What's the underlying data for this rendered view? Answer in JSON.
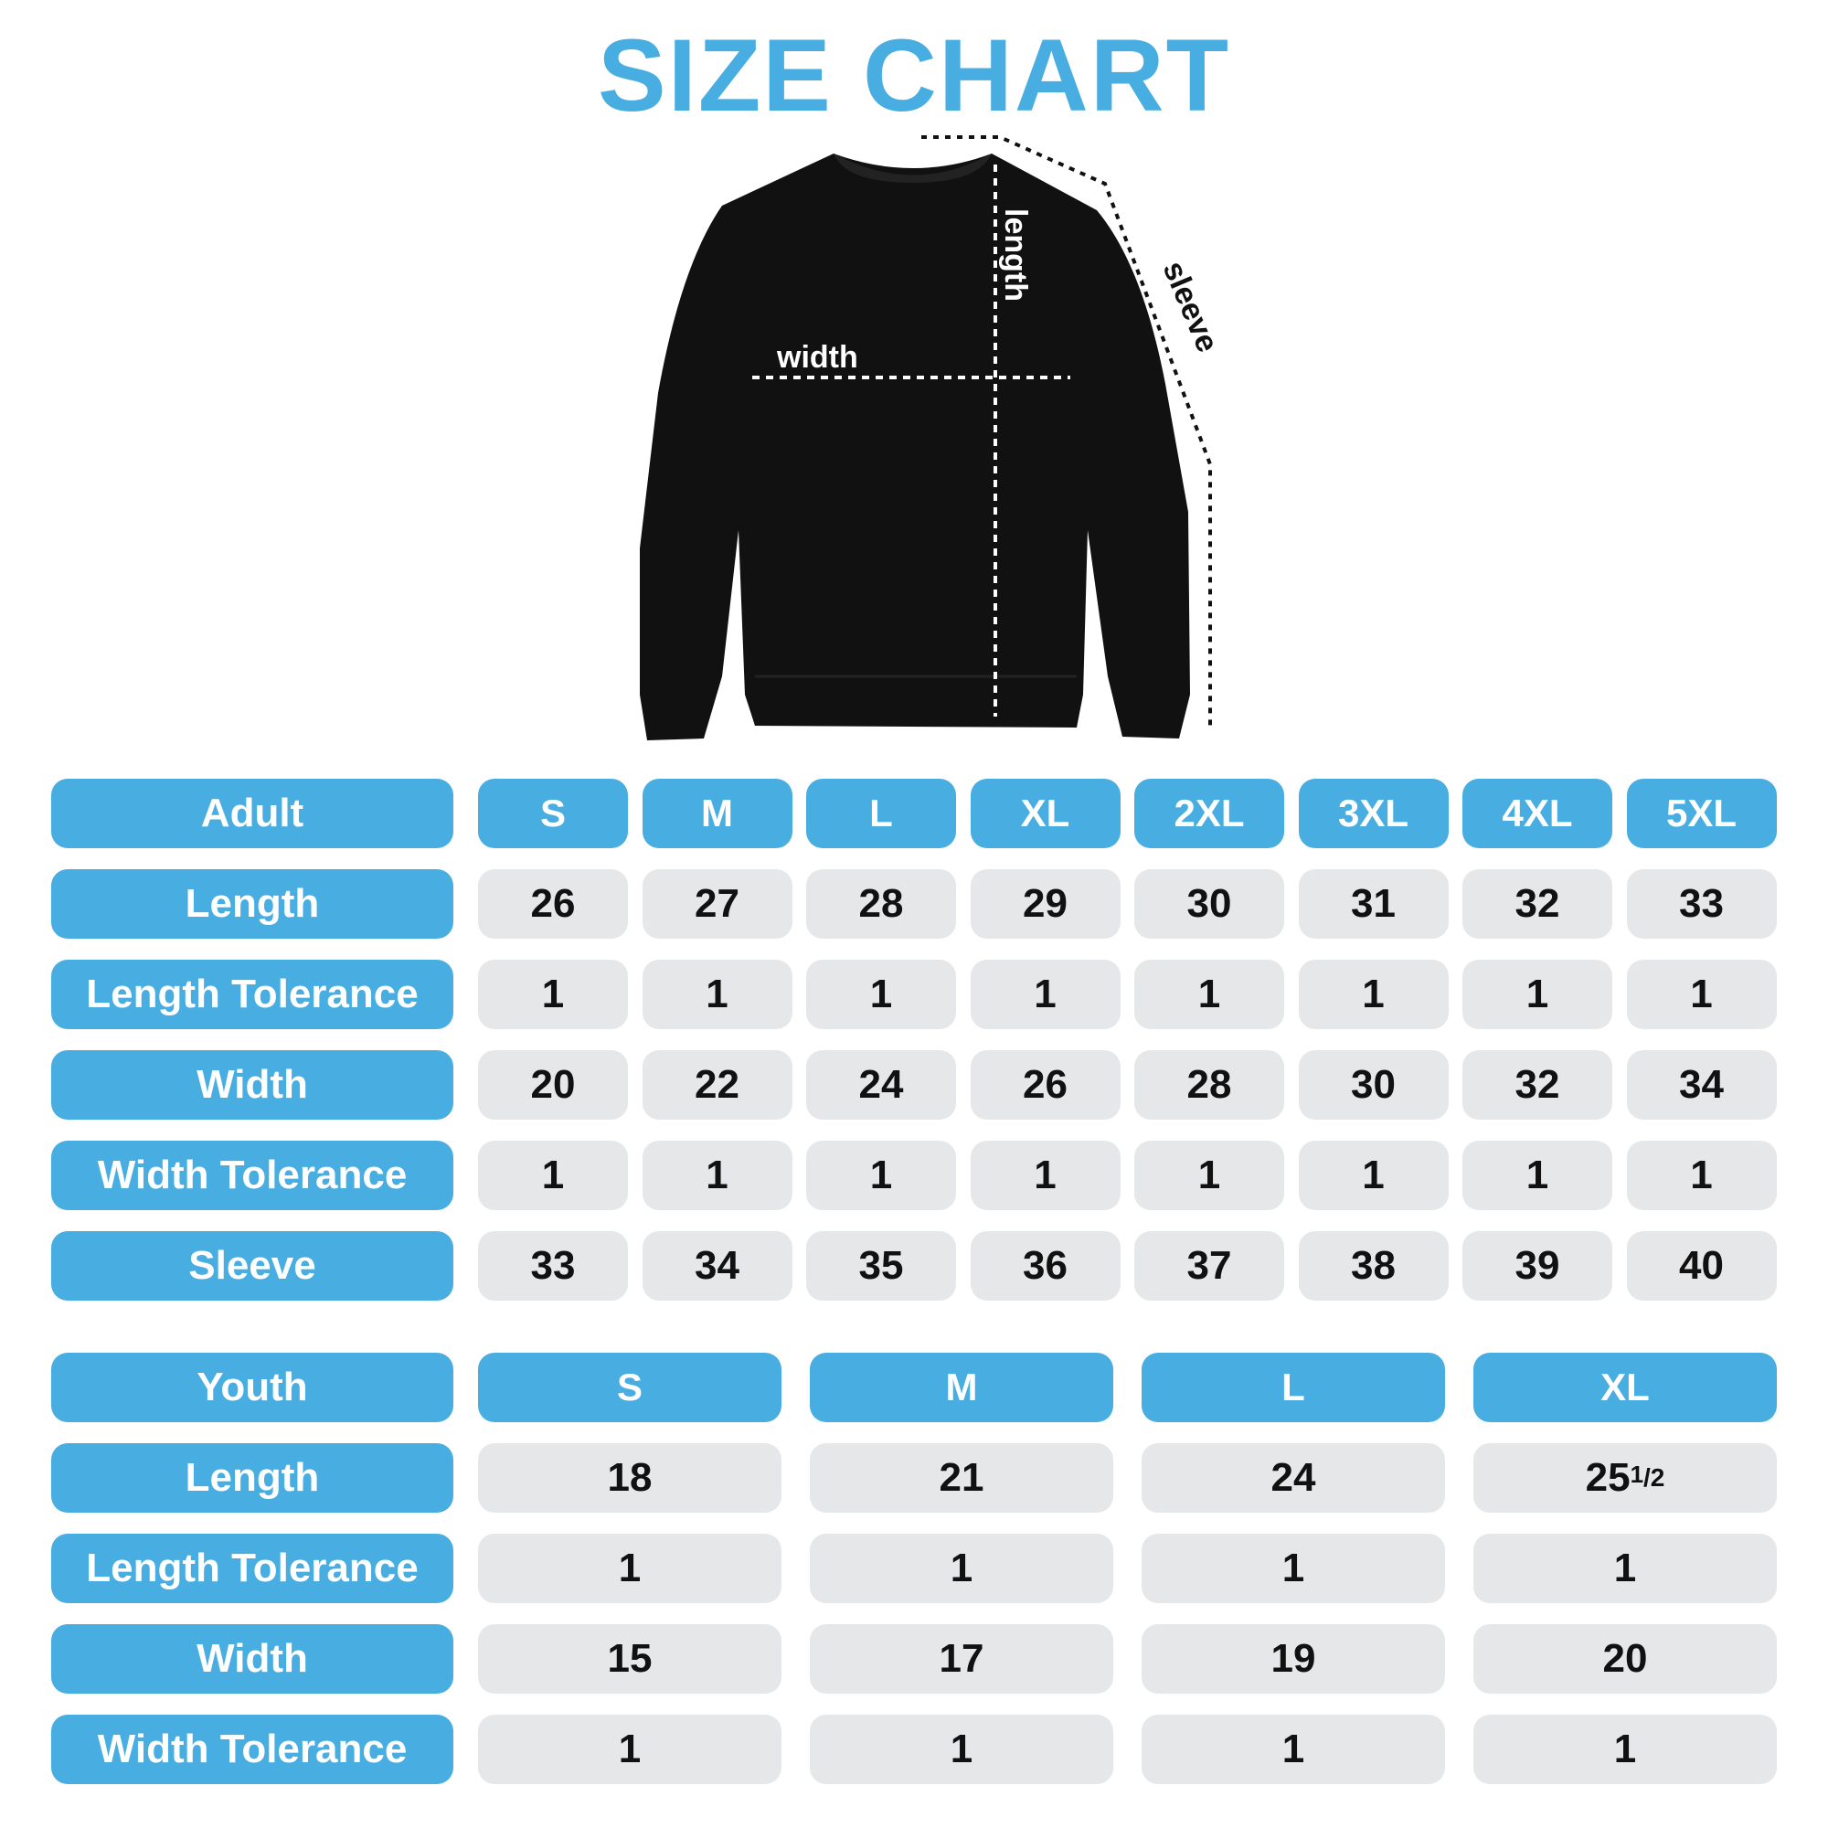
{
  "title": "SIZE CHART",
  "diagram": {
    "length_label": "length",
    "width_label": "width",
    "sleeve_label": "sleeve"
  },
  "colors": {
    "accent": "#48ade1",
    "cell": "#e6e7e9",
    "garment": "#111111"
  },
  "adult": {
    "header": "Adult",
    "sizes": [
      "S",
      "M",
      "L",
      "XL",
      "2XL",
      "3XL",
      "4XL",
      "5XL"
    ],
    "rows": [
      {
        "label": "Length",
        "values": [
          "26",
          "27",
          "28",
          "29",
          "30",
          "31",
          "32",
          "33"
        ]
      },
      {
        "label": "Length Tolerance",
        "values": [
          "1",
          "1",
          "1",
          "1",
          "1",
          "1",
          "1",
          "1"
        ]
      },
      {
        "label": "Width",
        "values": [
          "20",
          "22",
          "24",
          "26",
          "28",
          "30",
          "32",
          "34"
        ]
      },
      {
        "label": "Width Tolerance",
        "values": [
          "1",
          "1",
          "1",
          "1",
          "1",
          "1",
          "1",
          "1"
        ]
      },
      {
        "label": "Sleeve",
        "values": [
          "33",
          "34",
          "35",
          "36",
          "37",
          "38",
          "39",
          "40"
        ]
      }
    ]
  },
  "youth": {
    "header": "Youth",
    "sizes": [
      "S",
      "M",
      "L",
      "XL"
    ],
    "rows": [
      {
        "label": "Length",
        "values": [
          "18",
          "21",
          "24",
          "25 1/2"
        ]
      },
      {
        "label": "Length Tolerance",
        "values": [
          "1",
          "1",
          "1",
          "1"
        ]
      },
      {
        "label": "Width",
        "values": [
          "15",
          "17",
          "19",
          "20"
        ]
      },
      {
        "label": "Width Tolerance",
        "values": [
          "1",
          "1",
          "1",
          "1"
        ]
      }
    ]
  }
}
